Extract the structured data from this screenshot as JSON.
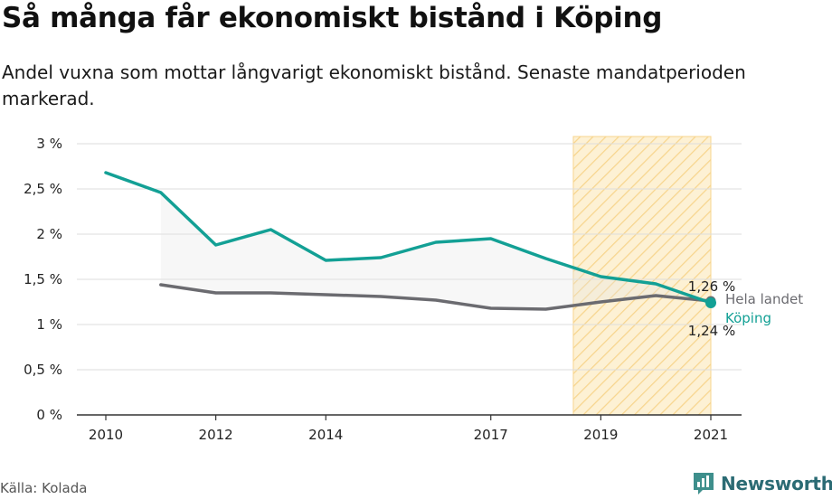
{
  "header": {
    "title": "Så många får ekonomiskt bistånd i Köping",
    "subtitle": "Andel vuxna som mottar långvarigt ekonomiskt bistånd. Senaste mandatperioden markerad."
  },
  "footer": {
    "source": "Källa: Kolada",
    "brand": "Newsworthy"
  },
  "colors": {
    "kommun": "#13a095",
    "riket": "#6b6b70",
    "highlight_fill": "#fdf1d4",
    "highlight_hatch": "#f7d58e",
    "icon": "#3e8f8c"
  },
  "icons": {
    "brand_icon": "bar-chart-speech-bubble-icon"
  },
  "chart_data": {
    "type": "line",
    "title": "Så många får ekonomiskt bistånd i Köping",
    "subtitle": "Andel vuxna som mottar långvarigt ekonomiskt bistånd. Senaste mandatperioden markerad.",
    "xlabel": "",
    "ylabel": "",
    "xlim": [
      2010,
      2021
    ],
    "ylim": [
      0,
      3
    ],
    "y_ticks": [
      0,
      0.5,
      1,
      1.5,
      2,
      2.5,
      3
    ],
    "y_tick_labels": [
      "0 %",
      "0,5 %",
      "1 %",
      "1,5 %",
      "2 %",
      "2,5 %",
      "3 %"
    ],
    "x_ticks": [
      2010,
      2012,
      2014,
      2017,
      2019,
      2021
    ],
    "x_tick_labels": [
      "2010",
      "2012",
      "2014",
      "2017",
      "2019",
      "2021"
    ],
    "grid": "horizontal",
    "highlight_period": [
      2018.5,
      2021
    ],
    "series": [
      {
        "name": "Köping",
        "color": "#13a095",
        "x": [
          2010,
          2011,
          2012,
          2013,
          2014,
          2015,
          2016,
          2017,
          2018,
          2019,
          2020,
          2021
        ],
        "values": [
          2.68,
          2.46,
          1.88,
          2.05,
          1.71,
          1.74,
          1.91,
          1.95,
          1.73,
          1.53,
          1.45,
          1.24
        ],
        "end_label": "1,24 %"
      },
      {
        "name": "Hela landet",
        "color": "#6b6b70",
        "x": [
          2011,
          2012,
          2013,
          2014,
          2015,
          2016,
          2017,
          2018,
          2019,
          2020,
          2021
        ],
        "values": [
          1.44,
          1.35,
          1.35,
          1.33,
          1.31,
          1.27,
          1.18,
          1.17,
          1.25,
          1.32,
          1.26
        ],
        "end_label": "1,26 %"
      }
    ]
  }
}
